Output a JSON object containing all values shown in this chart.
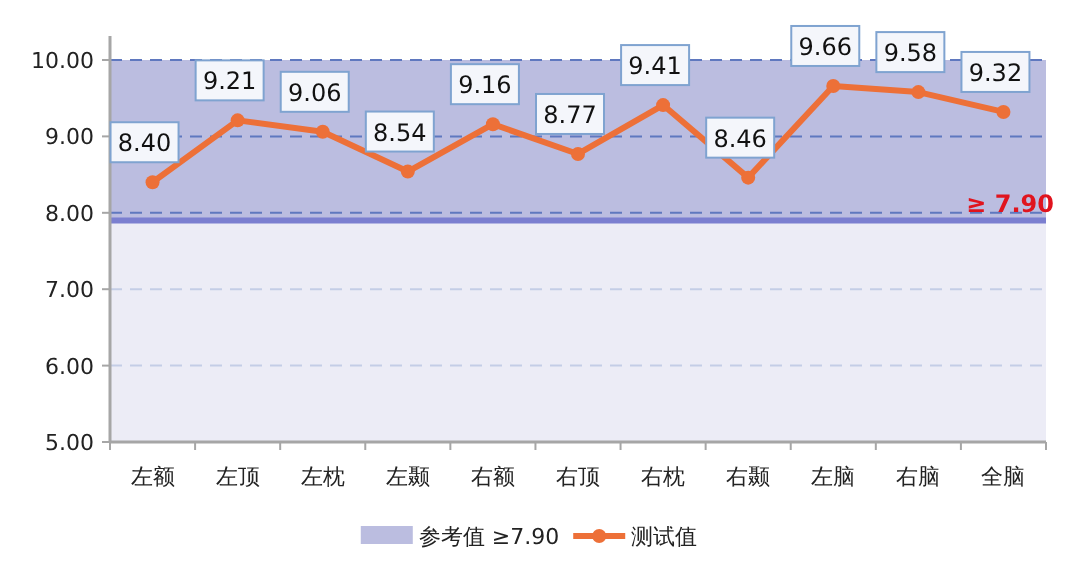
{
  "chart_data": {
    "type": "line",
    "categories": [
      "左额",
      "左顶",
      "左枕",
      "左颞",
      "右额",
      "右顶",
      "右枕",
      "右颞",
      "左脑",
      "右脑",
      "全脑"
    ],
    "series": [
      {
        "name": "测试值",
        "color": "#ed7038",
        "values": [
          8.4,
          9.21,
          9.06,
          8.54,
          9.16,
          8.77,
          9.41,
          8.46,
          9.66,
          9.58,
          9.32
        ],
        "value_labels": [
          "8.40",
          "9.21",
          "9.06",
          "8.54",
          "9.16",
          "8.77",
          "9.41",
          "8.46",
          "9.66",
          "9.58",
          "9.32"
        ]
      }
    ],
    "ylim": [
      5,
      10
    ],
    "yticks": [
      {
        "value": 5,
        "label": "5.00"
      },
      {
        "value": 6,
        "label": "6.00"
      },
      {
        "value": 7,
        "label": "7.00"
      },
      {
        "value": 8,
        "label": "8.00"
      },
      {
        "value": 9,
        "label": "9.00"
      },
      {
        "value": 10,
        "label": "10.00"
      }
    ],
    "grid": "y",
    "marker": "circle",
    "line_style": "solid",
    "legend": "bottom",
    "bands": [
      {
        "axis": "y",
        "from": 7.9,
        "to": 10,
        "label": "参考值 ≥7.90",
        "color": "#bbbde0"
      }
    ],
    "ref_lines": [
      {
        "axis": "y",
        "value": 7.9,
        "label": "≥ 7.90",
        "color": "#7b7fd0"
      }
    ]
  }
}
